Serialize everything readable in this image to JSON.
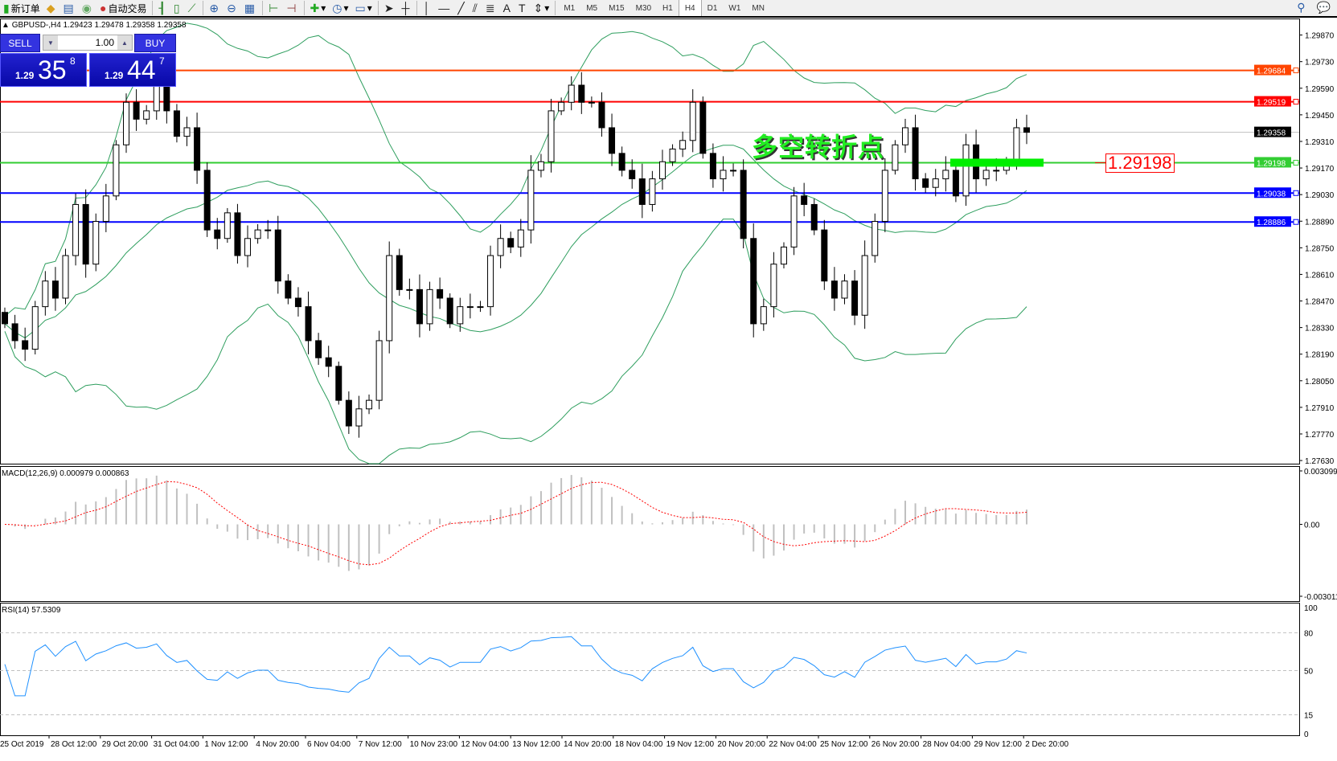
{
  "toolbar": {
    "new_order": "新订单",
    "auto_trading": "自动交易",
    "timeframes": [
      "M1",
      "M5",
      "M15",
      "M30",
      "H1",
      "H4",
      "D1",
      "W1",
      "MN"
    ],
    "active_timeframe": "H4"
  },
  "symbol_info": "GBPUSD-,H4  1.29423 1.29478 1.29358 1.29358",
  "one_click": {
    "sell_label": "SELL",
    "buy_label": "BUY",
    "lot": "1.00",
    "sell_small": "1.29",
    "sell_big": "35",
    "sell_sup": "8",
    "buy_small": "1.29",
    "buy_big": "44",
    "buy_sup": "7"
  },
  "annotation": {
    "text": "多空转折点",
    "price_label": "1.29198",
    "color": "#22ee22"
  },
  "colors": {
    "bollinger": "#2e9e5e",
    "bull": "#ffffff",
    "bear": "#000000",
    "macd_hist": "#c0c0c0",
    "macd_signal": "#ff0000",
    "rsi": "#1e90ff",
    "green_box": "#00ee00"
  },
  "chart_data": {
    "type": "candlestick",
    "symbol": "GBPUSD-",
    "timeframe": "H4",
    "ylim": [
      1.2763,
      1.2994
    ],
    "price_ticks": [
      "1.29870",
      "1.29730",
      "1.29590",
      "1.29450",
      "1.29310",
      "1.29170",
      "1.29030",
      "1.28890",
      "1.28750",
      "1.28610",
      "1.28470",
      "1.28330",
      "1.28190",
      "1.28050",
      "1.27910",
      "1.27770",
      "1.27630"
    ],
    "hlines": [
      {
        "price": 1.29684,
        "label": "1.29684",
        "color": "#ff4500"
      },
      {
        "price": 1.29519,
        "label": "1.29519",
        "color": "#ff0000"
      },
      {
        "price": 1.29198,
        "label": "1.29198",
        "color": "#32cd32"
      },
      {
        "price": 1.29038,
        "label": "1.29038",
        "color": "#0000ff"
      },
      {
        "price": 1.28886,
        "label": "1.28886",
        "color": "#0000ff"
      }
    ],
    "bid_line": {
      "price": 1.29358,
      "label": "1.29358"
    },
    "closes": [
      1.2835,
      1.28261,
      1.28216,
      1.2844,
      1.28575,
      1.28485,
      1.28709,
      1.28978,
      1.28664,
      1.28889,
      1.29023,
      1.29292,
      1.29516,
      1.29427,
      1.29471,
      1.29651,
      1.29471,
      1.29337,
      1.29382,
      1.29158,
      1.28844,
      1.28799,
      1.28934,
      1.28709,
      1.28799,
      1.28844,
      1.28844,
      1.28575,
      1.28485,
      1.2844,
      1.28261,
      1.28171,
      1.28126,
      1.27947,
      1.27812,
      1.27902,
      1.27947,
      1.28261,
      1.28709,
      1.2853,
      1.2853,
      1.2835,
      1.2853,
      1.28485,
      1.2835,
      1.2844,
      1.2844,
      1.2844,
      1.28709,
      1.28799,
      1.28754,
      1.28844,
      1.29158,
      1.29203,
      1.29471,
      1.29516,
      1.29606,
      1.29516,
      1.29516,
      1.29382,
      1.29247,
      1.29158,
      1.29113,
      1.28978,
      1.29113,
      1.29203,
      1.2927,
      1.29315,
      1.29516,
      1.29247,
      1.29113,
      1.29158,
      1.29158,
      1.28799,
      1.2835,
      1.2844,
      1.28664,
      1.28754,
      1.29023,
      1.28978,
      1.28844,
      1.28575,
      1.28485,
      1.28575,
      1.28395,
      1.28709,
      1.28889,
      1.29158,
      1.29292,
      1.29382,
      1.29113,
      1.29068,
      1.29113,
      1.29158,
      1.29023,
      1.29292,
      1.29113,
      1.29158,
      1.29158,
      1.29203,
      1.29382,
      1.29358
    ],
    "indicators": {
      "bollinger": "Bands(20,2)",
      "macd": {
        "label": "MACD(12,26,9) 0.000979 0.000863",
        "ticks": [
          "0.003099",
          "0.00",
          "-0.003011"
        ],
        "range": [
          -0.003011,
          0.003099
        ]
      },
      "rsi": {
        "label": "RSI(14) 57.5309",
        "ticks": [
          "100",
          "80",
          "50",
          "15",
          "0"
        ],
        "levels": [
          80,
          50,
          15
        ]
      }
    },
    "time_labels": [
      "25 Oct 2019",
      "28 Oct 12:00",
      "29 Oct 20:00",
      "31 Oct 04:00",
      "1 Nov 12:00",
      "4 Nov 20:00",
      "6 Nov 04:00",
      "7 Nov 12:00",
      "10 Nov 23:00",
      "12 Nov 04:00",
      "13 Nov 12:00",
      "14 Nov 20:00",
      "18 Nov 04:00",
      "19 Nov 12:00",
      "20 Nov 20:00",
      "22 Nov 04:00",
      "25 Nov 12:00",
      "26 Nov 20:00",
      "28 Nov 04:00",
      "29 Nov 12:00",
      "2 Dec 20:00"
    ]
  }
}
